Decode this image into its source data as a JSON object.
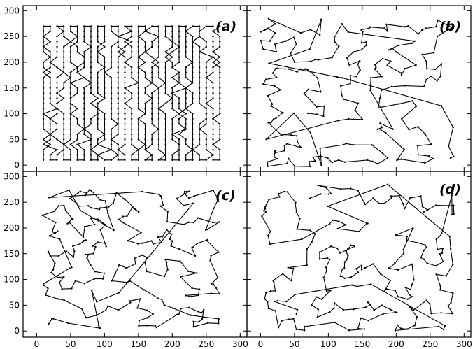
{
  "chart_data": {
    "type": "line",
    "description_labels": {
      "panels": [
        "(a)",
        "(b)",
        "(c)",
        "(d)"
      ]
    },
    "shared_axes": {
      "xlim": [
        -20,
        310
      ],
      "ylim": [
        -12,
        310
      ],
      "x_ticks": [
        0,
        50,
        100,
        150,
        200,
        250,
        300
      ],
      "y_ticks": [
        0,
        50,
        100,
        150,
        200,
        250,
        300
      ]
    },
    "panels": [
      {
        "label": "(a)",
        "style": "grid",
        "xrange": [
          10,
          270
        ],
        "yrange": [
          10,
          270
        ],
        "seed": 11,
        "points": 280
      },
      {
        "label": "(b)",
        "style": "random",
        "xrange": [
          0,
          285
        ],
        "yrange": [
          -5,
          285
        ],
        "seed": 23,
        "points": 210
      },
      {
        "label": "(c)",
        "style": "random",
        "xrange": [
          5,
          275
        ],
        "yrange": [
          5,
          275
        ],
        "seed": 37,
        "points": 230
      },
      {
        "label": "(d)",
        "style": "random",
        "xrange": [
          0,
          285
        ],
        "yrange": [
          0,
          285
        ],
        "seed": 51,
        "points": 220
      }
    ],
    "line_color": "#000000",
    "grid": false
  }
}
